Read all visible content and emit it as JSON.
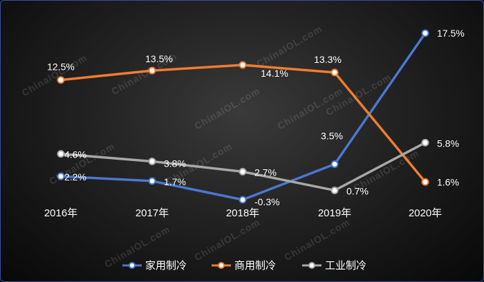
{
  "watermark": "ChinaIOL.com",
  "chart_data": {
    "type": "line",
    "categories": [
      "2016年",
      "2017年",
      "2018年",
      "2019年",
      "2020年"
    ],
    "ylim": [
      -3,
      19
    ],
    "grid": false,
    "legend_position": "bottom-center",
    "series": [
      {
        "name": "家用制冷",
        "color": "#4a78d0",
        "values": [
          2.2,
          1.7,
          -0.3,
          3.5,
          17.5
        ],
        "labels": [
          "2.2%",
          "1.7%",
          "-0.3%",
          "3.5%",
          "17.5%"
        ]
      },
      {
        "name": "商用制冷",
        "color": "#ef7d32",
        "values": [
          12.5,
          13.5,
          14.1,
          13.3,
          1.6
        ],
        "labels": [
          "12.5%",
          "13.5%",
          "14.1%",
          "13.3%",
          "1.6%"
        ]
      },
      {
        "name": "工业制冷",
        "color": "#a8a8a8",
        "values": [
          4.6,
          3.8,
          2.7,
          0.7,
          5.8
        ],
        "labels": [
          "4.6%",
          "3.8%",
          "2.7%",
          "0.7%",
          "5.8%"
        ]
      }
    ]
  }
}
